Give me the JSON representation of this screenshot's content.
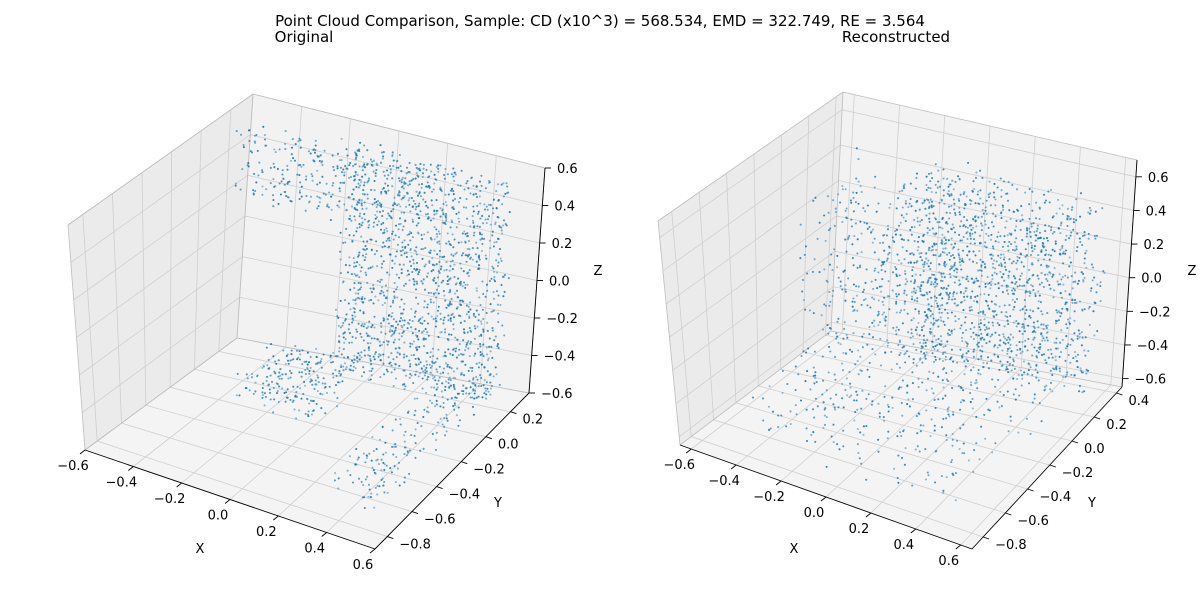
{
  "figure": {
    "title": "Point Cloud Comparison, Sample: CD (x10^3) = 568.534, EMD = 322.749, RE = 3.564"
  },
  "style": {
    "point_color": "#1f77b4",
    "pane_face": "#f2f2f2",
    "grid_color": "#cfcfcf"
  },
  "chart_data": [
    {
      "type": "scatter",
      "projection": "3d",
      "title": "Original",
      "xlabel": "X",
      "ylabel": "Y",
      "zlabel": "Z",
      "xlim": [
        -0.6,
        0.6
      ],
      "ylim": [
        -0.9,
        0.35
      ],
      "zlim": [
        -0.6,
        0.6
      ],
      "xticks": [
        -0.6,
        -0.4,
        -0.2,
        0.0,
        0.2,
        0.4,
        0.6
      ],
      "yticks": [
        -0.8,
        -0.6,
        -0.4,
        -0.2,
        0.0,
        0.2
      ],
      "zticks": [
        -0.6,
        -0.4,
        -0.2,
        0.0,
        0.2,
        0.4,
        0.6
      ],
      "xtick_labels": [
        "−0.6",
        "−0.4",
        "−0.2",
        "0.0",
        "0.2",
        "0.4",
        "0.6"
      ],
      "ytick_labels": [
        "−0.8",
        "−0.6",
        "−0.4",
        "−0.2",
        "0.0",
        "0.2"
      ],
      "ztick_labels": [
        "−0.6",
        "−0.4",
        "−0.2",
        "0.0",
        "0.2",
        "0.4",
        "0.6"
      ],
      "series": [
        {
          "point_count": 2048,
          "components": [
            {
              "shape": "box",
              "share": 0.72,
              "x": [
                -0.1,
                0.55
              ],
              "y": [
                0.12,
                0.22
              ],
              "z": [
                -0.55,
                0.6
              ],
              "spread": 0.015
            },
            {
              "shape": "box",
              "share": 0.1,
              "x": [
                -0.55,
                -0.05
              ],
              "y": [
                0.15,
                0.25
              ],
              "z": [
                0.2,
                0.55
              ],
              "spread": 0.02
            },
            {
              "shape": "box",
              "share": 0.1,
              "x": [
                -0.35,
                0.0
              ],
              "y": [
                -0.25,
                0.2
              ],
              "z": [
                -0.58,
                -0.45
              ],
              "spread": 0.02
            },
            {
              "shape": "box",
              "share": 0.08,
              "x": [
                0.3,
                0.5
              ],
              "y": [
                -0.7,
                0.15
              ],
              "z": [
                -0.6,
                -0.45
              ],
              "spread": 0.02
            }
          ]
        }
      ]
    },
    {
      "type": "scatter",
      "projection": "3d",
      "title": "Reconstructed",
      "xlabel": "X",
      "ylabel": "Y",
      "zlabel": "Z",
      "xlim": [
        -0.65,
        0.65
      ],
      "ylim": [
        -0.9,
        0.45
      ],
      "zlim": [
        -0.65,
        0.7
      ],
      "xticks": [
        -0.6,
        -0.4,
        -0.2,
        0.0,
        0.2,
        0.4,
        0.6
      ],
      "yticks": [
        -0.8,
        -0.6,
        -0.4,
        -0.2,
        0.0,
        0.2,
        0.4
      ],
      "zticks": [
        -0.6,
        -0.4,
        -0.2,
        0.0,
        0.2,
        0.4,
        0.6
      ],
      "xtick_labels": [
        "−0.6",
        "−0.4",
        "−0.2",
        "0.0",
        "0.2",
        "0.4",
        "0.6"
      ],
      "ytick_labels": [
        "−0.8",
        "−0.6",
        "−0.4",
        "−0.2",
        "0.0",
        "0.2",
        "0.4"
      ],
      "ztick_labels": [
        "−0.6",
        "−0.4",
        "−0.2",
        "0.0",
        "0.2",
        "0.4",
        "0.6"
      ],
      "series": [
        {
          "point_count": 2048,
          "components": [
            {
              "shape": "box",
              "share": 0.6,
              "x": [
                -0.15,
                0.6
              ],
              "y": [
                0.05,
                0.3
              ],
              "z": [
                -0.5,
                0.55
              ],
              "spread": 0.06
            },
            {
              "shape": "box",
              "share": 0.2,
              "x": [
                -0.5,
                0.1
              ],
              "y": [
                -0.2,
                0.3
              ],
              "z": [
                -0.3,
                0.5
              ],
              "spread": 0.08
            },
            {
              "shape": "box",
              "share": 0.2,
              "x": [
                -0.4,
                0.5
              ],
              "y": [
                -0.75,
                0.2
              ],
              "z": [
                -0.6,
                -0.2
              ],
              "spread": 0.08
            }
          ]
        }
      ]
    }
  ]
}
